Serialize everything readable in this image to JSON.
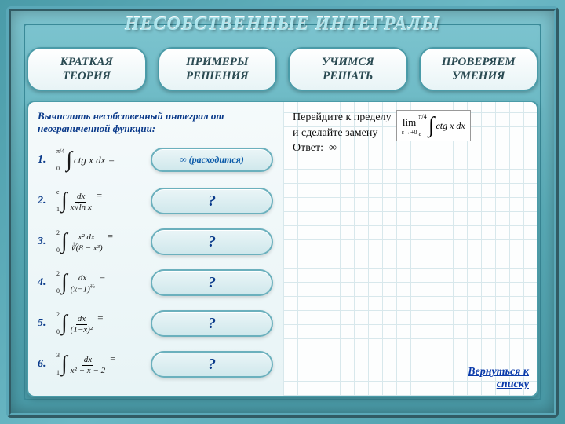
{
  "colors": {
    "frame_gradient": [
      "#7ec5d0",
      "#5aadb9",
      "#4a9ba8"
    ],
    "accent": "#0a3a8a",
    "link": "#0a3aaa",
    "panel_bg": [
      "#f5fafb",
      "#e8f4f6"
    ],
    "grid_line": "#d8e8ec"
  },
  "title": "НЕСОБСТВЕННЫЕ ИНТЕГРАЛЫ",
  "tabs": [
    {
      "line1": "КРАТКАЯ",
      "line2": "ТЕОРИЯ"
    },
    {
      "line1": "ПРИМЕРЫ",
      "line2": "РЕШЕНИЯ"
    },
    {
      "line1": "УЧИМСЯ",
      "line2": "РЕШАТЬ"
    },
    {
      "line1": "ПРОВЕРЯЕМ",
      "line2": "УМЕНИЯ"
    }
  ],
  "prompt": "Вычислить несобственный интеграл от неограниченной функции:",
  "problems": [
    {
      "n": "1.",
      "lower": "0",
      "upper": "π/4",
      "expr_html": "ctg x dx =",
      "answer": "∞ (расходится)",
      "kind": "result"
    },
    {
      "n": "2.",
      "lower": "1",
      "upper": "e",
      "expr_html": "<span class='frac'><span class='num'>dx</span><span class='den'>x√ln x</span></span> =",
      "answer": "?",
      "kind": "q"
    },
    {
      "n": "3.",
      "lower": "0",
      "upper": "2",
      "expr_html": "<span class='frac'><span class='num'>x² dx</span><span class='den'>∛(8 − x³)</span></span> =",
      "answer": "?",
      "kind": "q"
    },
    {
      "n": "4.",
      "lower": "0",
      "upper": "2",
      "expr_html": "<span class='frac'><span class='num'>dx</span><span class='den'>(x−1)<span class='sup'>⅔</span></span></span> =",
      "answer": "?",
      "kind": "q"
    },
    {
      "n": "5.",
      "lower": "0",
      "upper": "2",
      "expr_html": "<span class='frac'><span class='num'>dx</span><span class='den'>(1−x)²</span></span> =",
      "answer": "?",
      "kind": "q"
    },
    {
      "n": "6.",
      "lower": "1",
      "upper": "3",
      "expr_html": "<span class='frac'><span class='num'>dx</span><span class='den'>x² − x − 2</span></span> =",
      "answer": "?",
      "kind": "q"
    }
  ],
  "solution": {
    "line1": "Перейдите к пределу",
    "line2": "и сделайте замену",
    "answer_label": "Ответ:",
    "answer_value": "∞",
    "limit_prefix": "lim",
    "limit_sub": "ε→+0",
    "limit_lower": "ε",
    "limit_upper": "π/4",
    "limit_integrand": "ctg x dx"
  },
  "return_link": {
    "l1": "Вернуться к",
    "l2": "списку"
  }
}
